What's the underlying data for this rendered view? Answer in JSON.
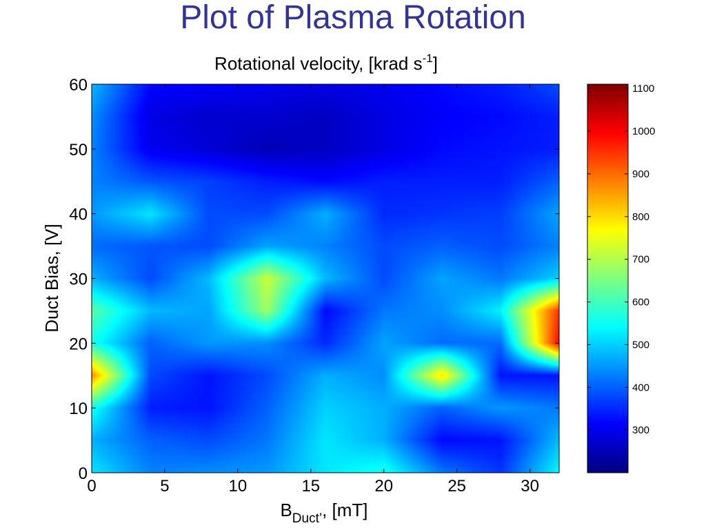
{
  "slide": {
    "title": "Plot of Plasma Rotation"
  },
  "chart_data": {
    "type": "heatmap",
    "title": "Rotational velocity, [krad s",
    "title_sup": "-1",
    "title_end": "]",
    "xlabel": "B",
    "xlabel_sub": "Duct’",
    "xlabel_end": ", [mT]",
    "ylabel": "Duct Bias, [V]",
    "xlim": [
      0,
      32
    ],
    "ylim": [
      0,
      60
    ],
    "xticks": [
      "0",
      "5",
      "10",
      "15",
      "20",
      "25",
      "30"
    ],
    "yticks": [
      "0",
      "10",
      "20",
      "30",
      "40",
      "50",
      "60"
    ],
    "colorbar": {
      "range": [
        200,
        1110
      ],
      "ticks": [
        "300",
        "400",
        "500",
        "600",
        "700",
        "800",
        "900",
        "1000",
        "1100"
      ],
      "colormap": "jet"
    },
    "x": [
      0,
      4,
      8,
      12,
      16,
      20,
      24,
      28,
      32
    ],
    "y": [
      0,
      5,
      10,
      15,
      20,
      25,
      30,
      35,
      40,
      45,
      50,
      55,
      60
    ],
    "z": [
      [
        520,
        430,
        440,
        450,
        520,
        560,
        420,
        360,
        540
      ],
      [
        470,
        400,
        380,
        420,
        520,
        470,
        320,
        330,
        480
      ],
      [
        560,
        340,
        330,
        400,
        500,
        470,
        400,
        450,
        420
      ],
      [
        870,
        380,
        330,
        380,
        470,
        440,
        800,
        330,
        330
      ],
      [
        560,
        400,
        450,
        440,
        350,
        460,
        410,
        410,
        990
      ],
      [
        620,
        480,
        460,
        680,
        320,
        420,
        440,
        530,
        950
      ],
      [
        470,
        380,
        480,
        720,
        480,
        380,
        460,
        420,
        500
      ],
      [
        410,
        390,
        380,
        460,
        430,
        380,
        400,
        380,
        430
      ],
      [
        450,
        520,
        380,
        380,
        470,
        350,
        360,
        370,
        460
      ],
      [
        430,
        390,
        370,
        340,
        320,
        340,
        340,
        340,
        400
      ],
      [
        430,
        300,
        280,
        250,
        260,
        290,
        320,
        330,
        340
      ],
      [
        440,
        290,
        270,
        270,
        260,
        290,
        310,
        320,
        340
      ],
      [
        480,
        320,
        310,
        300,
        290,
        300,
        320,
        340,
        380
      ]
    ]
  }
}
